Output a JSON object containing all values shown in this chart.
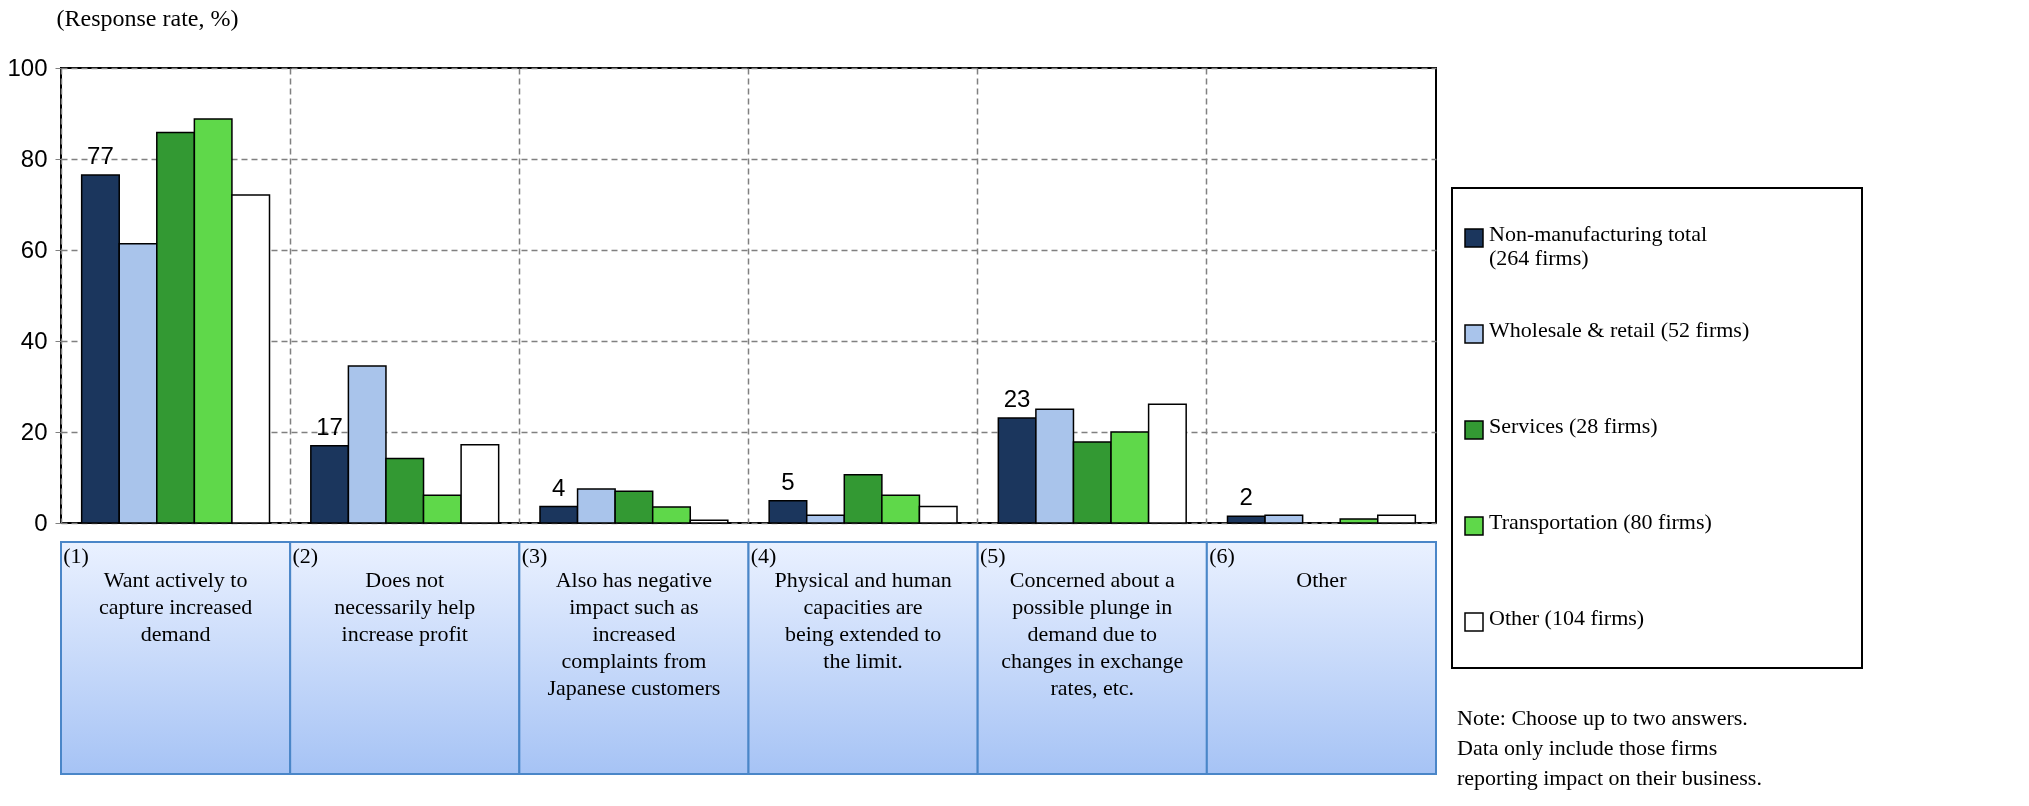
{
  "chart_data": {
    "type": "bar",
    "ylabel": "(Response rate, %)",
    "categories": [
      "(1) Want actively to capture increased demand",
      "(2) Does not necessarily help increase profit",
      "(3) Also has negative impact such as increased complaints from Japanese customers",
      "(4) Physical and human capacities are being extended to the limit.",
      "(5) Concerned about a possible plunge in demand due to changes in exchange rates, etc.",
      "(6) Other"
    ],
    "series": [
      {
        "name": "Non-manufacturing total (264 firms)",
        "color": "#1b365d",
        "values": [
          76.5,
          17.0,
          3.6,
          4.9,
          23.1,
          1.5
        ],
        "value_labels": [
          "77",
          "17",
          "4",
          "5",
          "23",
          "2"
        ]
      },
      {
        "name": "Wholesale & retail (52 firms)",
        "color": "#a9c4eb",
        "values": [
          61.4,
          34.5,
          7.5,
          1.7,
          25.0,
          1.7
        ]
      },
      {
        "name": "Services (28 firms)",
        "color": "#339933",
        "values": [
          85.8,
          14.2,
          7.0,
          10.6,
          17.8,
          null
        ]
      },
      {
        "name": "Transportation (80 firms)",
        "color": "#5fd84a",
        "values": [
          88.8,
          6.1,
          3.5,
          6.1,
          20.0,
          0.9
        ]
      },
      {
        "name": "Other (104 firms)",
        "color": "#ffffff",
        "values": [
          72.1,
          17.2,
          0.6,
          3.6,
          26.1,
          1.7
        ]
      }
    ],
    "ylim": [
      0,
      100
    ],
    "yticks": [
      0,
      20,
      40,
      60,
      80,
      100
    ],
    "grid": true,
    "legend": "right",
    "annotations": [
      "Note: Choose up to two answers. Data only include those firms reporting impact on their business."
    ]
  }
}
